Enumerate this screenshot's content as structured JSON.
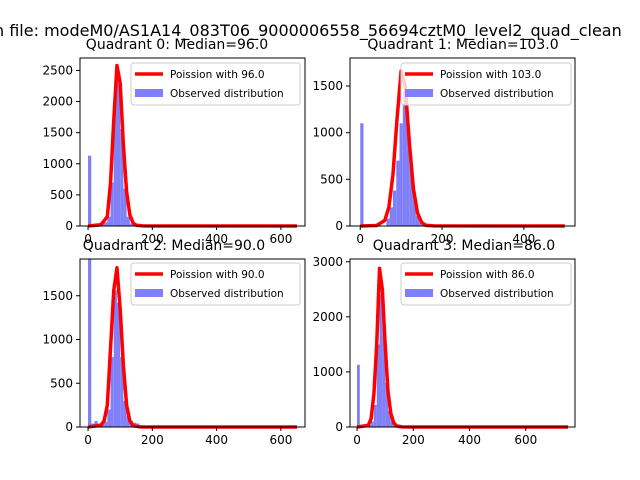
{
  "figure_title": "n file: modeM0/AS1A14_083T06_9000006558_56694cztM0_level2_quad_clean",
  "colors": {
    "poisson_line": "#ff0000",
    "histogram": "#7f7ff7",
    "axes": "#000000"
  },
  "chart_data": [
    {
      "type": "bar",
      "title": "Quadrant 0: Median=96.0",
      "xlim": [
        -25,
        675
      ],
      "ylim": [
        0,
        2700
      ],
      "xticks": [
        0,
        200,
        400,
        600
      ],
      "yticks": [
        0,
        500,
        1000,
        1500,
        2000,
        2500
      ],
      "legend": [
        "Poission with 96.0",
        "Observed distribution"
      ],
      "legend_position": "top-right",
      "histogram": {
        "bin_width": 10,
        "bins": [
          [
            0,
            1130
          ],
          [
            10,
            5
          ],
          [
            20,
            10
          ],
          [
            30,
            15
          ],
          [
            40,
            30
          ],
          [
            50,
            60
          ],
          [
            60,
            150
          ],
          [
            70,
            700
          ],
          [
            80,
            2150
          ],
          [
            90,
            2450
          ],
          [
            100,
            1560
          ],
          [
            110,
            600
          ],
          [
            120,
            150
          ],
          [
            130,
            40
          ],
          [
            140,
            20
          ],
          [
            150,
            10
          ],
          [
            160,
            8
          ],
          [
            170,
            5
          ],
          [
            180,
            3
          ],
          [
            190,
            2
          ],
          [
            200,
            2
          ]
        ]
      },
      "poisson": {
        "mean": 96.0,
        "points": [
          [
            0,
            0
          ],
          [
            40,
            20
          ],
          [
            60,
            150
          ],
          [
            70,
            700
          ],
          [
            80,
            1700
          ],
          [
            90,
            2580
          ],
          [
            100,
            2300
          ],
          [
            110,
            1300
          ],
          [
            120,
            550
          ],
          [
            130,
            180
          ],
          [
            140,
            50
          ],
          [
            150,
            12
          ],
          [
            170,
            2
          ],
          [
            200,
            0
          ],
          [
            650,
            0
          ]
        ]
      }
    },
    {
      "type": "bar",
      "title": "Quadrant 1: Median=103.0",
      "xlim": [
        -25,
        525
      ],
      "ylim": [
        0,
        1800
      ],
      "xticks": [
        0,
        200,
        400
      ],
      "yticks": [
        0,
        500,
        1000,
        1500
      ],
      "legend": [
        "Poission with 103.0",
        "Observed distribution"
      ],
      "legend_position": "top-right",
      "histogram": {
        "bin_width": 8,
        "bins": [
          [
            0,
            1100
          ],
          [
            64,
            80
          ],
          [
            72,
            200
          ],
          [
            80,
            380
          ],
          [
            88,
            700
          ],
          [
            96,
            1100
          ],
          [
            104,
            1440
          ],
          [
            112,
            1140
          ],
          [
            120,
            700
          ],
          [
            128,
            330
          ],
          [
            136,
            110
          ],
          [
            144,
            40
          ],
          [
            152,
            20
          ],
          [
            160,
            8
          ],
          [
            168,
            4
          ],
          [
            176,
            2
          ]
        ]
      },
      "poisson": {
        "mean": 103.0,
        "points": [
          [
            0,
            0
          ],
          [
            40,
            5
          ],
          [
            60,
            60
          ],
          [
            70,
            200
          ],
          [
            80,
            550
          ],
          [
            90,
            1150
          ],
          [
            100,
            1660
          ],
          [
            110,
            1500
          ],
          [
            120,
            900
          ],
          [
            130,
            400
          ],
          [
            140,
            140
          ],
          [
            150,
            40
          ],
          [
            160,
            8
          ],
          [
            180,
            1
          ],
          [
            500,
            0
          ]
        ]
      }
    },
    {
      "type": "bar",
      "title": "Quadrant 2: Median=90.0",
      "xlim": [
        -25,
        675
      ],
      "ylim": [
        0,
        1920
      ],
      "xticks": [
        0,
        200,
        400,
        600
      ],
      "yticks": [
        0,
        500,
        1000,
        1500
      ],
      "legend": [
        "Poission with 90.0",
        "Observed distribution"
      ],
      "legend_position": "top-right",
      "histogram": {
        "bin_width": 10,
        "bins": [
          [
            0,
            1920
          ],
          [
            10,
            40
          ],
          [
            20,
            70
          ],
          [
            30,
            40
          ],
          [
            40,
            30
          ],
          [
            50,
            60
          ],
          [
            60,
            200
          ],
          [
            70,
            800
          ],
          [
            80,
            1560
          ],
          [
            90,
            1420
          ],
          [
            100,
            800
          ],
          [
            110,
            300
          ],
          [
            120,
            120
          ],
          [
            130,
            70
          ],
          [
            140,
            50
          ],
          [
            150,
            40
          ],
          [
            160,
            20
          ],
          [
            170,
            10
          ],
          [
            180,
            5
          ],
          [
            190,
            3
          ]
        ]
      },
      "poisson": {
        "mean": 90.0,
        "points": [
          [
            0,
            0
          ],
          [
            40,
            20
          ],
          [
            50,
            70
          ],
          [
            60,
            250
          ],
          [
            70,
            900
          ],
          [
            80,
            1560
          ],
          [
            90,
            1820
          ],
          [
            100,
            1350
          ],
          [
            110,
            700
          ],
          [
            120,
            250
          ],
          [
            130,
            70
          ],
          [
            140,
            15
          ],
          [
            160,
            2
          ],
          [
            200,
            0
          ],
          [
            650,
            0
          ]
        ]
      }
    },
    {
      "type": "bar",
      "title": "Quadrant 3: Median=86.0",
      "xlim": [
        -25,
        775
      ],
      "ylim": [
        0,
        3050
      ],
      "xticks": [
        0,
        200,
        400,
        600
      ],
      "yticks": [
        0,
        1000,
        2000,
        3000
      ],
      "legend": [
        "Poission with 86.0",
        "Observed distribution"
      ],
      "legend_position": "top-right",
      "histogram": {
        "bin_width": 10,
        "bins": [
          [
            0,
            1130
          ],
          [
            10,
            10
          ],
          [
            20,
            10
          ],
          [
            30,
            20
          ],
          [
            40,
            40
          ],
          [
            50,
            100
          ],
          [
            60,
            400
          ],
          [
            70,
            1500
          ],
          [
            80,
            2400
          ],
          [
            90,
            1800
          ],
          [
            100,
            800
          ],
          [
            110,
            300
          ],
          [
            120,
            100
          ],
          [
            130,
            50
          ],
          [
            140,
            30
          ],
          [
            150,
            20
          ],
          [
            160,
            10
          ],
          [
            170,
            5
          ],
          [
            180,
            3
          ],
          [
            190,
            2
          ]
        ]
      },
      "poisson": {
        "mean": 86.0,
        "points": [
          [
            0,
            0
          ],
          [
            40,
            30
          ],
          [
            50,
            150
          ],
          [
            60,
            600
          ],
          [
            70,
            1500
          ],
          [
            80,
            2880
          ],
          [
            90,
            2500
          ],
          [
            100,
            1500
          ],
          [
            110,
            650
          ],
          [
            120,
            250
          ],
          [
            130,
            80
          ],
          [
            140,
            20
          ],
          [
            160,
            2
          ],
          [
            200,
            0
          ],
          [
            750,
            0
          ]
        ]
      }
    }
  ]
}
